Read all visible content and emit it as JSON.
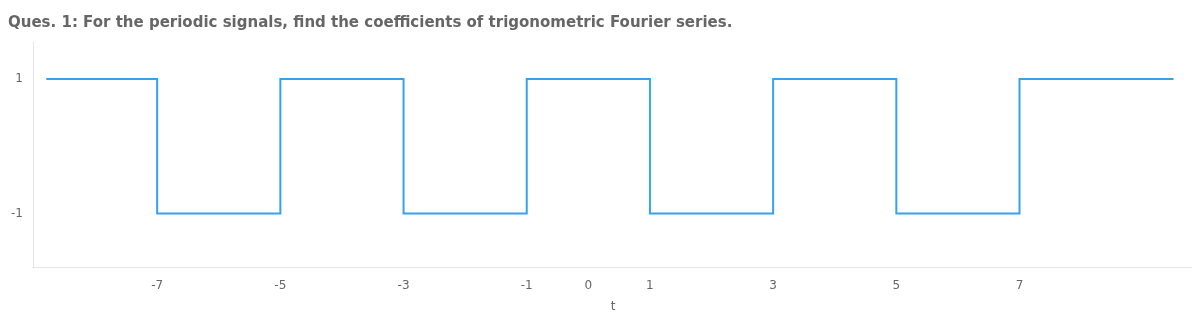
{
  "chart_data": {
    "type": "line",
    "title": "Ques. 1: For the periodic signals, find the coefficients of trigonometric Fourier series.",
    "xlabel": "t",
    "x": [
      -8.8,
      -7,
      -7,
      -5,
      -5,
      -3,
      -3,
      -1,
      -1,
      1,
      1,
      3,
      3,
      5,
      5,
      7,
      7,
      9.5
    ],
    "values": [
      1,
      1,
      -1,
      -1,
      1,
      1,
      -1,
      -1,
      1,
      1,
      -1,
      -1,
      1,
      1,
      -1,
      -1,
      1,
      1
    ],
    "xlim": [
      -9.0,
      9.8
    ],
    "ylim": [
      -1.8,
      1.55
    ],
    "xticks": [
      -7,
      -5,
      -3,
      -1,
      0,
      1,
      3,
      5,
      7
    ],
    "yticks": [
      -1,
      1
    ],
    "grid": false
  }
}
